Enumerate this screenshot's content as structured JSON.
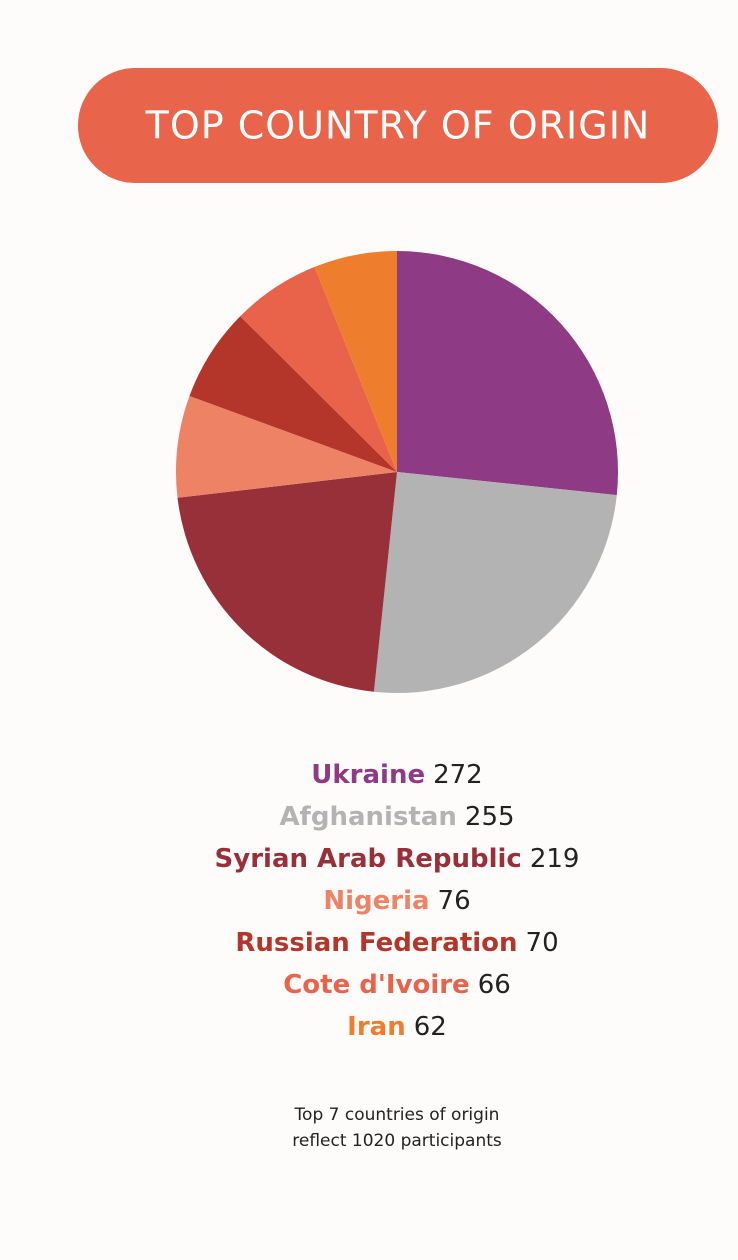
{
  "chart_data": {
    "type": "pie",
    "title": "TOP COUNTRY OF ORIGIN",
    "categories": [
      "Ukraine",
      "Afghanistan",
      "Syrian Arab Republic",
      "Nigeria",
      "Russian Federation",
      "Cote d'Ivoire",
      "Iran"
    ],
    "values": [
      272,
      255,
      219,
      76,
      70,
      66,
      62
    ],
    "colors": [
      "#8e3a84",
      "#b3b3b3",
      "#98303a",
      "#ee8265",
      "#b4352a",
      "#e8634a",
      "#ee7e2d"
    ],
    "title_color": "#e8644a",
    "note": [
      "Top 7 countries of origin",
      "reflect 1020 participants"
    ]
  }
}
